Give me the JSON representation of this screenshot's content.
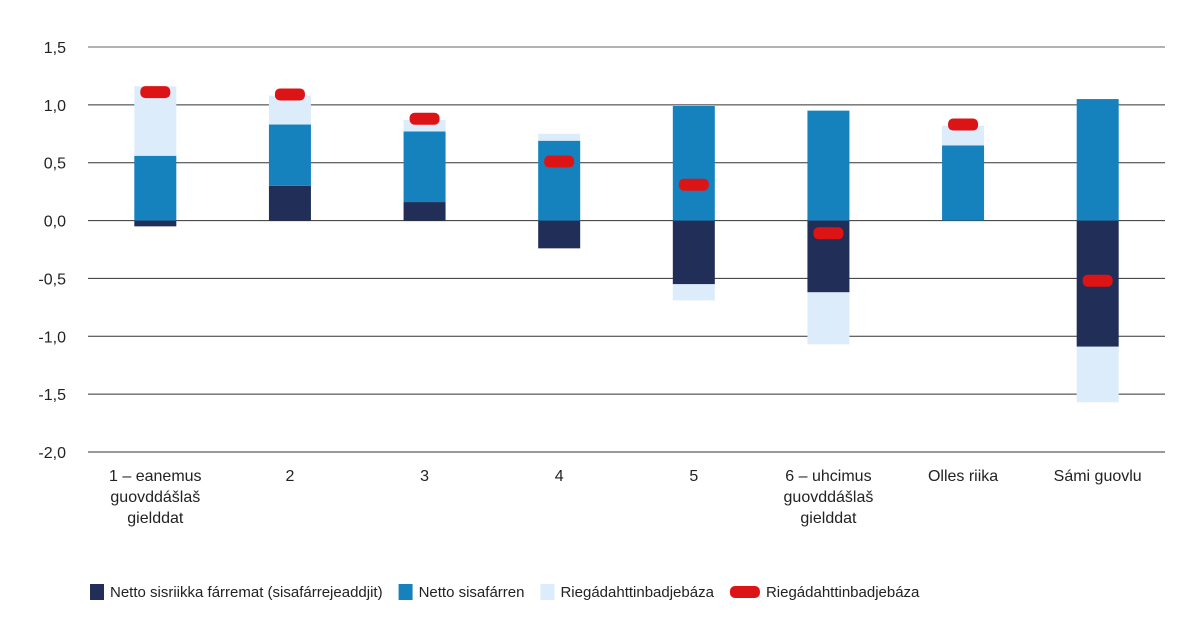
{
  "chart_data": {
    "type": "bar",
    "stacked": true,
    "title": "",
    "xlabel": "",
    "ylabel": "",
    "ylim": [
      -2.0,
      1.5
    ],
    "yticks": [
      "1,5",
      "1,0",
      "0,5",
      "0,0",
      "-0,5",
      "-1,0",
      "-1,5",
      "-2,0"
    ],
    "ytick_values": [
      1.5,
      1.0,
      0.5,
      0.0,
      -0.5,
      -1.0,
      -1.5,
      -2.0
    ],
    "grid": true,
    "legend_position": "bottom",
    "categories": [
      [
        "1 – eanemus",
        "guovddášlaš",
        "gielddat"
      ],
      [
        "2"
      ],
      [
        "3"
      ],
      [
        "4"
      ],
      [
        "5"
      ],
      [
        "6 – uhcimus",
        "guovddášlaš",
        "gielddat"
      ],
      [
        "Olles riika"
      ],
      [
        "Sámi guovlu"
      ]
    ],
    "series": [
      {
        "name": "Netto sisriikka fárremat (sisafárrejeaddjit)",
        "color": "#212e57",
        "kind": "bar",
        "values": [
          -0.05,
          0.3,
          0.16,
          -0.24,
          -0.55,
          -0.62,
          0.0,
          -1.09
        ]
      },
      {
        "name": "Netto sisafárren",
        "color": "#1682bd",
        "kind": "bar",
        "values": [
          0.56,
          0.53,
          0.61,
          0.69,
          0.99,
          0.95,
          0.65,
          1.05
        ]
      },
      {
        "name": "Riegádahttinbadjebáza",
        "color": "#dcecfa",
        "kind": "bar",
        "values": [
          0.6,
          0.25,
          0.1,
          0.06,
          -0.14,
          -0.45,
          0.17,
          -0.48
        ]
      },
      {
        "name": "Riegádahttinbadjebáza",
        "color": "#dd1416",
        "kind": "marker",
        "values": [
          1.11,
          1.09,
          0.88,
          0.51,
          0.31,
          -0.11,
          0.83,
          -0.52
        ]
      }
    ]
  }
}
